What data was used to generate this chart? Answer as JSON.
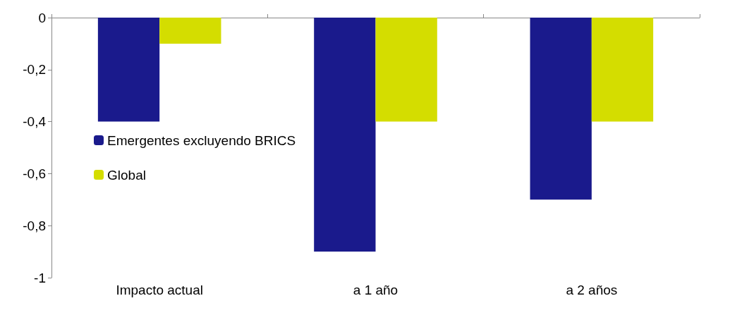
{
  "chart_data": {
    "type": "bar",
    "categories": [
      "Impacto actual",
      "a 1 año",
      "a 2 años"
    ],
    "series": [
      {
        "name": "Emergentes excluyendo BRICS",
        "color": "#1a1a8c",
        "values": [
          -0.4,
          -0.9,
          -0.7
        ]
      },
      {
        "name": "Global",
        "color": "#d4dd00",
        "values": [
          -0.1,
          -0.4,
          -0.4
        ]
      }
    ],
    "ylim": [
      -1,
      0
    ],
    "yticks": [
      -1,
      {
        "value": -0.8,
        "label": "-0,8"
      },
      {
        "value": -0.6,
        "label": "-0,6"
      },
      {
        "value": -0.4,
        "label": "-0,4"
      },
      {
        "value": -0.2,
        "label": "-0,2"
      },
      0
    ],
    "grid": false,
    "legend": "left"
  }
}
